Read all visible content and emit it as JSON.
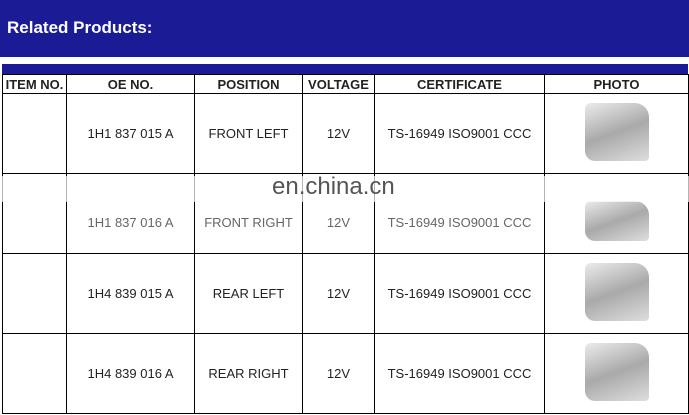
{
  "title": "Related Products:",
  "headers": [
    "ITEM NO.",
    "OE NO.",
    "POSITION",
    "VOLTAGE",
    "CERTIFICATE",
    "PHOTO"
  ],
  "rows": [
    {
      "item": "",
      "oe": "1H1 837 015 A",
      "position": "FRONT LEFT",
      "voltage": "12V",
      "certificate": "TS-16949 ISO9001 CCC"
    },
    {
      "item": "",
      "oe": "1H1 837 016 A",
      "position": "FRONT RIGHT",
      "voltage": "12V",
      "certificate": "TS-16949 ISO9001 CCC"
    },
    {
      "item": "",
      "oe": "1H4 839 015 A",
      "position": "REAR LEFT",
      "voltage": "12V",
      "certificate": "TS-16949 ISO9001 CCC"
    },
    {
      "item": "",
      "oe": "1H4 839 016 A",
      "position": "REAR RIGHT",
      "voltage": "12V",
      "certificate": "TS-16949 ISO9001 CCC"
    }
  ],
  "watermark": "en.china.cn"
}
